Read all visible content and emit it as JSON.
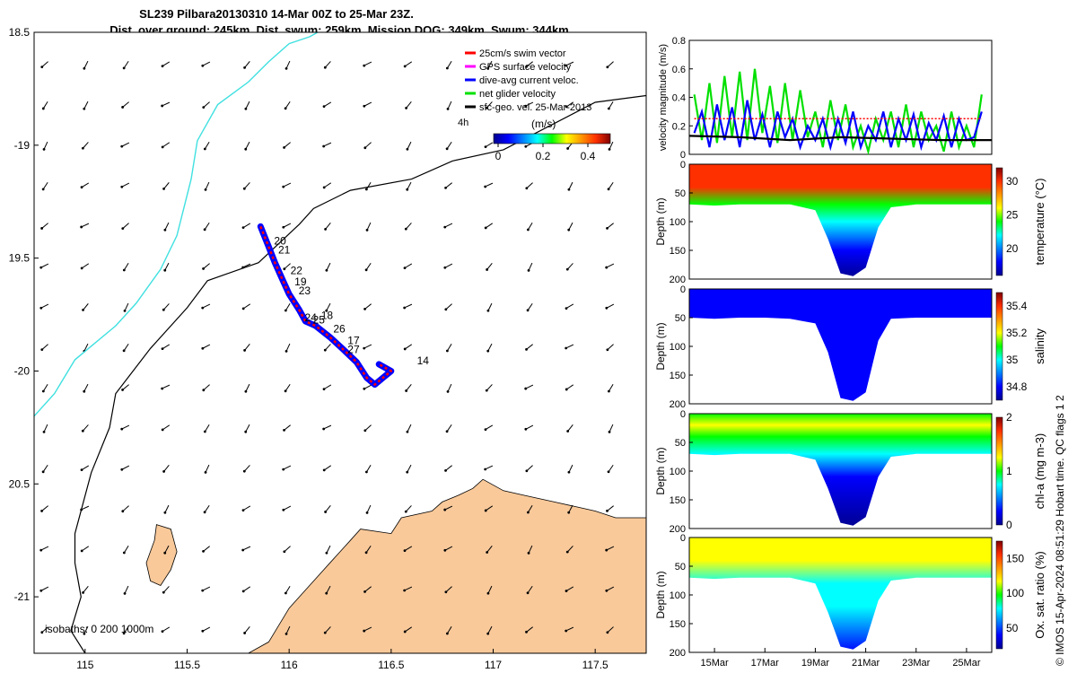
{
  "title": {
    "line1": "SL239 Pilbara20130310 14-Mar 00Z to 25-Mar 23Z.",
    "line2": "Dist. over ground: 245km. Dist. swum: 259km. Mission DOG: 349km. Swum: 344km"
  },
  "footer": "© IMOS 15-Apr-2024 08:51:29 Hobart time. QC flags 1  2",
  "colors": {
    "land": "#f9c99a",
    "coast_cyan": "#40e0e0",
    "track_red": "#ff0000",
    "track_blue": "#0000ff",
    "net_green": "#00e000",
    "swim_red": "#e00000"
  },
  "chart_data": [
    {
      "id": "map",
      "type": "scatter",
      "xlim": [
        114.75,
        117.75
      ],
      "ylim": [
        -21.25,
        -18.5
      ],
      "xticks": [
        115,
        115.5,
        116,
        116.5,
        117,
        117.5
      ],
      "xtick_labels": [
        "115",
        "115.5",
        "116",
        "116.5",
        "117",
        "117.5"
      ],
      "yticks": [
        -18.5,
        -19,
        -19.5,
        -20,
        -20.5,
        -21
      ],
      "ytick_labels": [
        "18.5",
        "-19",
        "19.5",
        "-20",
        "20.5",
        "-21"
      ],
      "legend": {
        "placement": "top-right",
        "entries": [
          {
            "label": "25cm/s swim vector",
            "color": "#ff0000"
          },
          {
            "label": "GPS surface velocity",
            "color": "#ff00ff"
          },
          {
            "label": "dive-avg current veloc.",
            "color": "#0000ff"
          },
          {
            "label": "net glider velocity",
            "color": "#00e000"
          },
          {
            "label": "sfc-geo. vel. 25-Mar-2013",
            "color": "#000000"
          }
        ],
        "note": "4h"
      },
      "colorbar": {
        "label": "(m/s)",
        "ticks": [
          0,
          0.2,
          0.4
        ],
        "tick_labels": [
          "0",
          "0.2",
          "0.4"
        ],
        "range": [
          -0.02,
          0.5
        ]
      },
      "isobath_label": "isobaths: 0   200  1000m",
      "track": [
        [
          115.86,
          -19.36
        ],
        [
          115.9,
          -19.45
        ],
        [
          115.93,
          -19.52
        ],
        [
          115.97,
          -19.6
        ],
        [
          116.0,
          -19.66
        ],
        [
          116.05,
          -19.73
        ],
        [
          116.08,
          -19.78
        ],
        [
          116.13,
          -19.8
        ],
        [
          116.2,
          -19.85
        ],
        [
          116.26,
          -19.9
        ],
        [
          116.33,
          -19.96
        ],
        [
          116.38,
          -20.03
        ],
        [
          116.42,
          -20.06
        ],
        [
          116.46,
          -20.03
        ],
        [
          116.5,
          -20.0
        ],
        [
          116.44,
          -19.97
        ]
      ],
      "track_labels": [
        {
          "text": "20",
          "lon": 115.9,
          "lat": -19.44
        },
        {
          "text": "21",
          "lon": 115.92,
          "lat": -19.48
        },
        {
          "text": "22",
          "lon": 115.98,
          "lat": -19.57
        },
        {
          "text": "19",
          "lon": 116.0,
          "lat": -19.62
        },
        {
          "text": "23",
          "lon": 116.02,
          "lat": -19.66
        },
        {
          "text": "24",
          "lon": 116.05,
          "lat": -19.78
        },
        {
          "text": "25",
          "lon": 116.09,
          "lat": -19.79
        },
        {
          "text": "18",
          "lon": 116.13,
          "lat": -19.77
        },
        {
          "text": "26",
          "lon": 116.19,
          "lat": -19.83
        },
        {
          "text": "17",
          "lon": 116.26,
          "lat": -19.88
        },
        {
          "text": "27",
          "lon": 116.26,
          "lat": -19.92
        },
        {
          "text": "14",
          "lon": 116.6,
          "lat": -19.97
        }
      ],
      "isobath_200": [
        [
          115.0,
          -21.25
        ],
        [
          114.93,
          -21.15
        ],
        [
          114.98,
          -21.0
        ],
        [
          114.95,
          -20.85
        ],
        [
          114.95,
          -20.72
        ],
        [
          115.03,
          -20.45
        ],
        [
          115.12,
          -20.25
        ],
        [
          115.15,
          -20.1
        ],
        [
          115.32,
          -19.9
        ],
        [
          115.5,
          -19.72
        ],
        [
          115.6,
          -19.6
        ],
        [
          115.85,
          -19.52
        ],
        [
          116.05,
          -19.35
        ],
        [
          116.12,
          -19.28
        ],
        [
          116.3,
          -19.2
        ],
        [
          116.6,
          -19.15
        ],
        [
          116.8,
          -19.07
        ],
        [
          117.05,
          -19.02
        ],
        [
          117.5,
          -18.81
        ],
        [
          117.75,
          -18.78
        ]
      ],
      "isobath_1000": [
        [
          114.75,
          -20.2
        ],
        [
          114.85,
          -20.1
        ],
        [
          114.95,
          -19.95
        ],
        [
          115.15,
          -19.8
        ],
        [
          115.25,
          -19.7
        ],
        [
          115.37,
          -19.55
        ],
        [
          115.45,
          -19.4
        ],
        [
          115.52,
          -19.15
        ],
        [
          115.55,
          -18.98
        ],
        [
          115.65,
          -18.82
        ],
        [
          115.8,
          -18.72
        ],
        [
          115.9,
          -18.63
        ],
        [
          116.0,
          -18.55
        ],
        [
          116.1,
          -18.52
        ],
        [
          116.18,
          -18.48
        ]
      ],
      "land_main": [
        [
          115.8,
          -21.25
        ],
        [
          115.9,
          -21.2
        ],
        [
          116.0,
          -21.05
        ],
        [
          116.1,
          -20.95
        ],
        [
          116.2,
          -20.85
        ],
        [
          116.3,
          -20.75
        ],
        [
          116.35,
          -20.7
        ],
        [
          116.5,
          -20.72
        ],
        [
          116.55,
          -20.65
        ],
        [
          116.7,
          -20.62
        ],
        [
          116.75,
          -20.58
        ],
        [
          116.83,
          -20.55
        ],
        [
          116.9,
          -20.52
        ],
        [
          116.95,
          -20.48
        ],
        [
          117.05,
          -20.53
        ],
        [
          117.15,
          -20.55
        ],
        [
          117.3,
          -20.58
        ],
        [
          117.4,
          -20.6
        ],
        [
          117.5,
          -20.62
        ],
        [
          117.6,
          -20.65
        ],
        [
          117.75,
          -20.65
        ],
        [
          117.75,
          -21.25
        ]
      ],
      "land_island": [
        [
          115.35,
          -20.68
        ],
        [
          115.42,
          -20.7
        ],
        [
          115.45,
          -20.8
        ],
        [
          115.42,
          -20.88
        ],
        [
          115.37,
          -20.95
        ],
        [
          115.32,
          -20.93
        ],
        [
          115.3,
          -20.85
        ],
        [
          115.34,
          -20.75
        ]
      ]
    },
    {
      "id": "velocity",
      "type": "line",
      "ylabel": "velocity magnitude (m/s)",
      "ylim": [
        0,
        0.8
      ],
      "yticks": [
        0,
        0.2,
        0.4,
        0.6,
        0.8
      ],
      "ytick_labels": [
        "0",
        "0.2",
        "0.4",
        "0.6",
        "0.8"
      ],
      "xlim": [
        14,
        26
      ],
      "series": [
        {
          "color": "#00e000",
          "values": [
            [
              14.2,
              0.42
            ],
            [
              14.5,
              0.1
            ],
            [
              14.8,
              0.5
            ],
            [
              15.1,
              0.08
            ],
            [
              15.4,
              0.55
            ],
            [
              15.7,
              0.12
            ],
            [
              16.0,
              0.58
            ],
            [
              16.3,
              0.1
            ],
            [
              16.6,
              0.6
            ],
            [
              16.9,
              0.15
            ],
            [
              17.2,
              0.48
            ],
            [
              17.5,
              0.08
            ],
            [
              17.8,
              0.5
            ],
            [
              18.1,
              0.1
            ],
            [
              18.4,
              0.45
            ],
            [
              18.7,
              0.12
            ],
            [
              19.0,
              0.3
            ],
            [
              19.3,
              0.05
            ],
            [
              19.6,
              0.38
            ],
            [
              19.9,
              0.1
            ],
            [
              20.2,
              0.35
            ],
            [
              20.5,
              0.05
            ],
            [
              20.8,
              0.2
            ],
            [
              21.1,
              0.02
            ],
            [
              21.4,
              0.25
            ],
            [
              21.7,
              0.1
            ],
            [
              22.0,
              0.3
            ],
            [
              22.3,
              0.05
            ],
            [
              22.6,
              0.35
            ],
            [
              22.9,
              0.05
            ],
            [
              23.2,
              0.3
            ],
            [
              23.5,
              0.1
            ],
            [
              23.8,
              0.2
            ],
            [
              24.1,
              0.02
            ],
            [
              24.4,
              0.3
            ],
            [
              24.7,
              0.05
            ],
            [
              25.0,
              0.2
            ],
            [
              25.3,
              0.05
            ],
            [
              25.6,
              0.42
            ]
          ]
        },
        {
          "color": "#0000ff",
          "values": [
            [
              14.2,
              0.15
            ],
            [
              14.5,
              0.3
            ],
            [
              14.8,
              0.05
            ],
            [
              15.1,
              0.35
            ],
            [
              15.4,
              0.1
            ],
            [
              15.7,
              0.33
            ],
            [
              16.0,
              0.05
            ],
            [
              16.3,
              0.38
            ],
            [
              16.6,
              0.1
            ],
            [
              16.9,
              0.28
            ],
            [
              17.2,
              0.05
            ],
            [
              17.5,
              0.3
            ],
            [
              17.8,
              0.12
            ],
            [
              18.1,
              0.25
            ],
            [
              18.4,
              0.05
            ],
            [
              18.7,
              0.2
            ],
            [
              19.0,
              0.1
            ],
            [
              19.3,
              0.25
            ],
            [
              19.6,
              0.05
            ],
            [
              19.9,
              0.25
            ],
            [
              20.2,
              0.08
            ],
            [
              20.5,
              0.3
            ],
            [
              20.8,
              0.05
            ],
            [
              21.1,
              0.2
            ],
            [
              21.4,
              0.1
            ],
            [
              21.7,
              0.3
            ],
            [
              22.0,
              0.05
            ],
            [
              22.3,
              0.25
            ],
            [
              22.6,
              0.1
            ],
            [
              22.9,
              0.28
            ],
            [
              23.2,
              0.05
            ],
            [
              23.5,
              0.22
            ],
            [
              23.8,
              0.1
            ],
            [
              24.1,
              0.27
            ],
            [
              24.4,
              0.05
            ],
            [
              24.7,
              0.25
            ],
            [
              25.0,
              0.1
            ],
            [
              25.3,
              0.12
            ],
            [
              25.6,
              0.3
            ]
          ]
        },
        {
          "color": "#ff0000",
          "values": [
            [
              14.2,
              0.25
            ],
            [
              25.6,
              0.25
            ]
          ]
        },
        {
          "color": "#000000",
          "values": [
            [
              14.0,
              0.13
            ],
            [
              16.0,
              0.12
            ],
            [
              18.0,
              0.1
            ],
            [
              20.0,
              0.12
            ],
            [
              22.0,
              0.11
            ],
            [
              24.0,
              0.1
            ],
            [
              26.0,
              0.1
            ]
          ]
        }
      ]
    },
    {
      "id": "temperature",
      "type": "heatmap",
      "ylabel": "Depth (m)",
      "colorbar_label": "temperature (°C)",
      "ylim": [
        0,
        200
      ],
      "yticks": [
        0,
        50,
        100,
        150,
        200
      ],
      "colorbar_ticks": [
        20,
        25,
        30
      ],
      "colorbar_range": [
        16,
        32
      ],
      "profile": {
        "x": [
          14,
          15,
          16,
          17,
          18,
          19,
          19.5,
          20,
          20.5,
          21,
          21.5,
          22,
          23,
          24,
          25,
          26
        ],
        "depth": [
          70,
          72,
          70,
          70,
          70,
          80,
          130,
          190,
          195,
          180,
          110,
          75,
          70,
          70,
          70,
          70
        ]
      },
      "layers": [
        {
          "depth": 0,
          "value": 30
        },
        {
          "depth": 40,
          "value": 28
        },
        {
          "depth": 70,
          "value": 24
        },
        {
          "depth": 100,
          "value": 21
        },
        {
          "depth": 150,
          "value": 18
        },
        {
          "depth": 200,
          "value": 16
        }
      ]
    },
    {
      "id": "salinity",
      "type": "heatmap",
      "ylabel": "Depth (m)",
      "colorbar_label": "salinity",
      "ylim": [
        0,
        200
      ],
      "yticks": [
        0,
        50,
        100,
        150,
        200
      ],
      "colorbar_ticks": [
        34.8,
        35,
        35.2,
        35.4
      ],
      "colorbar_range": [
        34.7,
        35.5
      ],
      "profile": {
        "x": [
          14,
          15,
          16,
          17,
          18,
          19,
          19.5,
          20,
          20.5,
          21,
          21.5,
          22,
          23,
          24,
          25,
          26
        ],
        "depth": [
          50,
          52,
          50,
          50,
          52,
          60,
          110,
          190,
          195,
          180,
          90,
          52,
          50,
          50,
          50,
          50
        ]
      },
      "layers": [
        {
          "depth": 0,
          "value": 34.78
        },
        {
          "depth": 50,
          "value": 34.78
        },
        {
          "depth": 200,
          "value": 34.76
        }
      ]
    },
    {
      "id": "chla",
      "type": "heatmap",
      "ylabel": "Depth (m)",
      "colorbar_label": "chl-a (mg m-3)",
      "ylim": [
        0,
        200
      ],
      "yticks": [
        0,
        50,
        100,
        150,
        200
      ],
      "colorbar_ticks": [
        0,
        1,
        2
      ],
      "colorbar_range": [
        0,
        2
      ],
      "profile": {
        "x": [
          14,
          15,
          16,
          17,
          18,
          19,
          19.5,
          20,
          20.5,
          21,
          21.5,
          22,
          23,
          24,
          25,
          26
        ],
        "depth": [
          70,
          72,
          70,
          70,
          70,
          80,
          130,
          190,
          195,
          180,
          110,
          75,
          70,
          70,
          70,
          70
        ]
      },
      "layers": [
        {
          "depth": 0,
          "value": 1.0
        },
        {
          "depth": 20,
          "value": 1.3
        },
        {
          "depth": 40,
          "value": 1.0
        },
        {
          "depth": 70,
          "value": 0.5
        },
        {
          "depth": 110,
          "value": 0.25
        },
        {
          "depth": 200,
          "value": 0.05
        }
      ]
    },
    {
      "id": "oxygen",
      "type": "heatmap",
      "ylabel": "Depth (m)",
      "colorbar_label": "Ox. sat. ratio (%)",
      "ylim": [
        0,
        200
      ],
      "yticks": [
        0,
        50,
        100,
        150,
        200
      ],
      "colorbar_ticks": [
        50,
        100,
        150
      ],
      "colorbar_range": [
        20,
        175
      ],
      "profile": {
        "x": [
          14,
          15,
          16,
          17,
          18,
          19,
          19.5,
          20,
          20.5,
          21,
          21.5,
          22,
          23,
          24,
          25,
          26
        ],
        "depth": [
          70,
          72,
          70,
          70,
          70,
          80,
          130,
          190,
          195,
          180,
          110,
          75,
          70,
          70,
          70,
          70
        ]
      },
      "layers": [
        {
          "depth": 0,
          "value": 115
        },
        {
          "depth": 40,
          "value": 110
        },
        {
          "depth": 80,
          "value": 80
        },
        {
          "depth": 120,
          "value": 65
        },
        {
          "depth": 200,
          "value": 50
        }
      ]
    }
  ],
  "time_axis": {
    "range": [
      14,
      26
    ],
    "ticks": [
      15,
      17,
      19,
      21,
      23,
      25
    ],
    "labels": [
      "15Mar",
      "17Mar",
      "19Mar",
      "21Mar",
      "23Mar",
      "25Mar"
    ]
  }
}
